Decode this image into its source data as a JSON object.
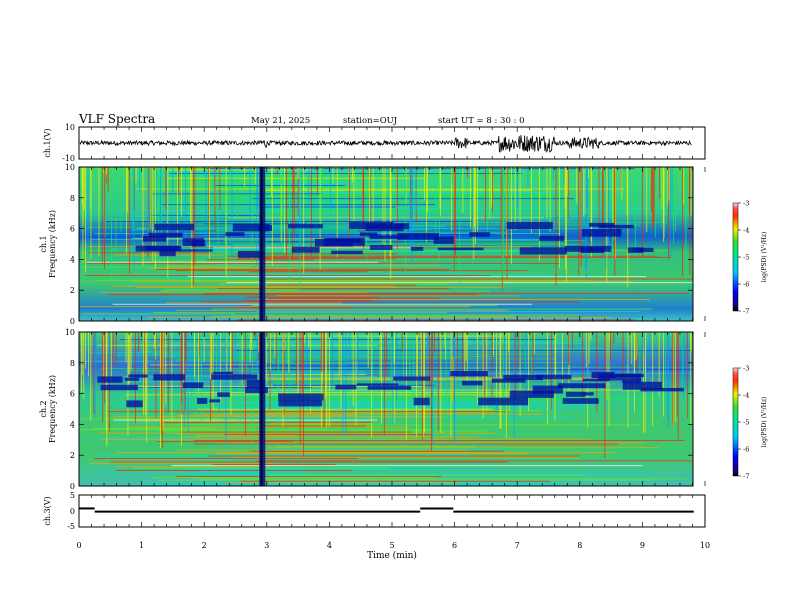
{
  "header": {
    "title": "VLF Spectra",
    "date": "May 21, 2025",
    "station": "station=OUJ",
    "start": "start UT =  8 : 30 : 0"
  },
  "chart_data": [
    {
      "type": "line",
      "panel": "ch1-waveform",
      "ylabel": "ch.1(V)",
      "ylim": [
        -10,
        10
      ],
      "yticks": [
        "10",
        "-10"
      ],
      "xlim": [
        0,
        10
      ]
    },
    {
      "type": "heatmap",
      "panel": "ch1-spectrogram",
      "ylabel_top": "ch.1",
      "ylabel": "Frequency (kHz)",
      "ylim": [
        0,
        10
      ],
      "yticks": [
        "0",
        "2",
        "4",
        "6",
        "8",
        "10"
      ],
      "xlim": [
        0,
        10
      ],
      "colorbar": {
        "label": "log(PSD) (V²/Hz)",
        "range": [
          -7,
          -3
        ],
        "ticks": [
          "-3",
          "-4",
          "-5",
          "-6",
          "-7"
        ]
      }
    },
    {
      "type": "heatmap",
      "panel": "ch2-spectrogram",
      "ylabel_top": "ch.2",
      "ylabel": "Frequency (kHz)",
      "ylim": [
        0,
        10
      ],
      "yticks": [
        "0",
        "2",
        "4",
        "6",
        "8",
        "10"
      ],
      "xlim": [
        0,
        10
      ],
      "colorbar": {
        "label": "log(PSD) (V²/Hz)",
        "range": [
          -7,
          -3
        ],
        "ticks": [
          "-3",
          "-4",
          "-5",
          "-6",
          "-7"
        ]
      }
    },
    {
      "type": "line",
      "panel": "ch3-signal",
      "ylabel": "ch.3(V)",
      "ylim": [
        -5,
        5
      ],
      "yticks": [
        "5",
        "0",
        "-5"
      ],
      "xlim": [
        0,
        10
      ],
      "segments": [
        {
          "x": [
            0.0,
            0.25
          ],
          "y": 0.8
        },
        {
          "x": [
            0.25,
            5.45
          ],
          "y": -0.2
        },
        {
          "x": [
            5.45,
            5.98
          ],
          "y": 0.8
        },
        {
          "x": [
            5.98,
            9.82
          ],
          "y": -0.2
        }
      ]
    }
  ],
  "xaxis": {
    "label": "Time (min)",
    "ticks": [
      "0",
      "1",
      "2",
      "3",
      "4",
      "5",
      "6",
      "7",
      "8",
      "9",
      "10"
    ]
  }
}
